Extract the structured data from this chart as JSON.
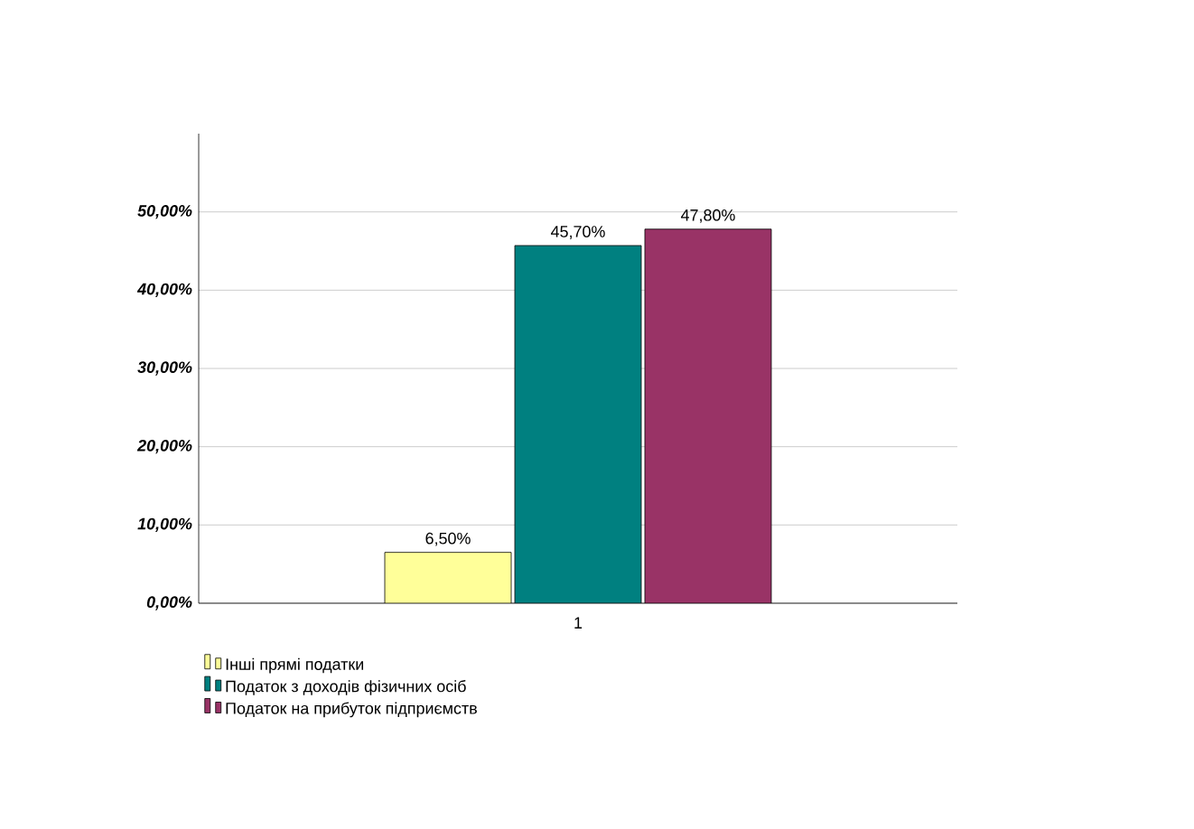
{
  "chart_data": {
    "type": "bar",
    "categories": [
      "1"
    ],
    "series": [
      {
        "name": "Інші прямі податки",
        "color": "#ffff99",
        "values": [
          6.5
        ],
        "value_labels": [
          "6,50%"
        ]
      },
      {
        "name": "Податок з доходів фізичних осіб",
        "color": "#008080",
        "values": [
          45.7
        ],
        "value_labels": [
          "45,70%"
        ]
      },
      {
        "name": "Податок на прибуток підприємств",
        "color": "#993366",
        "values": [
          47.8
        ],
        "value_labels": [
          "47,80%"
        ]
      }
    ],
    "ylim": [
      0,
      60
    ],
    "yticks": [
      {
        "value": 0,
        "label": "0,00%"
      },
      {
        "value": 10,
        "label": "10,00%"
      },
      {
        "value": 20,
        "label": "20,00%"
      },
      {
        "value": 30,
        "label": "30,00%"
      },
      {
        "value": 40,
        "label": "40,00%"
      },
      {
        "value": 50,
        "label": "50,00%"
      }
    ],
    "grid": "y",
    "legend": "bottom left"
  }
}
